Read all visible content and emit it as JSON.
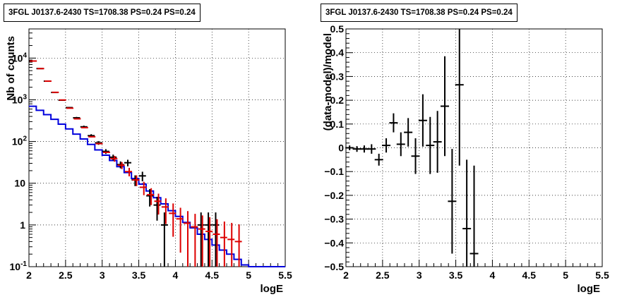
{
  "chart_data": [
    {
      "type": "line",
      "title": "3FGL J0137.6-2430 TS=1708.38 PS=0.24 PS=0.24",
      "xlabel": "logE",
      "ylabel": "Nb of counts",
      "xlim": [
        2,
        5.5
      ],
      "ylim": [
        0.1,
        50000
      ],
      "yscale": "log",
      "grid": true,
      "x_ticks": [
        "2",
        "2.5",
        "3",
        "3.5",
        "4",
        "4.5",
        "5",
        "5.5"
      ],
      "y_ticks": [
        "10^-1",
        "1",
        "10",
        "10^2",
        "10^3",
        "10^4"
      ],
      "colors": {
        "data": "#000000",
        "model_total": "#dd0000",
        "model_source": "#0000dd"
      },
      "series": [
        {
          "role": "data",
          "x": [
            2.05,
            2.15,
            2.25,
            2.35,
            2.45,
            2.55,
            2.65,
            2.75,
            2.85,
            2.95,
            3.05,
            3.15,
            3.25,
            3.35,
            3.45,
            3.55,
            3.65,
            3.75,
            3.85,
            3.95,
            4.05,
            4.15,
            4.25,
            4.35,
            4.45,
            4.55,
            4.65,
            4.75,
            4.85
          ],
          "y": [
            8500,
            5600,
            2800,
            1500,
            980,
            650,
            370,
            225,
            138,
            93,
            58,
            42,
            28,
            31,
            12,
            15,
            5,
            3,
            1,
            0,
            0,
            0,
            0,
            1,
            1,
            1,
            0,
            0,
            0
          ]
        },
        {
          "role": "model_total",
          "x": [
            2.05,
            2.15,
            2.25,
            2.35,
            2.45,
            2.55,
            2.65,
            2.75,
            2.85,
            2.95,
            3.05,
            3.15,
            3.25,
            3.35,
            3.45,
            3.55,
            3.65,
            3.75,
            3.85,
            3.95,
            4.05,
            4.15,
            4.25,
            4.35,
            4.45,
            4.55,
            4.65,
            4.75,
            4.85
          ],
          "y": [
            8500,
            5600,
            2800,
            1510,
            990,
            630,
            350,
            215,
            130,
            89,
            55,
            39,
            27,
            19,
            12,
            8,
            5.3,
            3.7,
            2.7,
            1.9,
            1.4,
            1.1,
            0.9,
            0.8,
            0.7,
            0.6,
            0.5,
            0.45,
            0.4
          ]
        },
        {
          "role": "model_source",
          "x": [
            2.0,
            2.1,
            2.2,
            2.3,
            2.4,
            2.5,
            2.6,
            2.7,
            2.8,
            2.9,
            3.0,
            3.1,
            3.2,
            3.3,
            3.4,
            3.5,
            3.6,
            3.7,
            3.8,
            3.9,
            4.0,
            4.1,
            4.2,
            4.3,
            4.4,
            4.5,
            4.6,
            4.7,
            4.8,
            4.9,
            5.0,
            5.1,
            5.2,
            5.3,
            5.4
          ],
          "y": [
            700,
            560,
            440,
            340,
            260,
            200,
            150,
            115,
            85,
            63,
            47,
            35,
            25,
            18,
            13,
            9.5,
            6.5,
            4.5,
            3.2,
            2.2,
            1.6,
            1.15,
            0.85,
            0.6,
            0.45,
            0.33,
            0.25,
            0.2,
            0.15,
            0.11,
            0.1,
            0.1,
            0.1,
            0.1,
            0.1
          ]
        }
      ]
    },
    {
      "type": "scatter",
      "title": "3FGL J0137.6-2430 TS=1708.38 PS=0.24 PS=0.24",
      "xlabel": "logE",
      "ylabel": "(data-model)/model",
      "xlim": [
        2,
        5.5
      ],
      "ylim": [
        -0.5,
        0.5
      ],
      "grid": true,
      "x_ticks": [
        "2",
        "2.5",
        "3",
        "3.5",
        "4",
        "4.5",
        "5",
        "5.5"
      ],
      "y_ticks": [
        "−0.5",
        "−0.4",
        "−0.3",
        "−0.2",
        "−0.1",
        "0",
        "0.1",
        "0.2",
        "0.3",
        "0.4",
        "0.5"
      ],
      "x": [
        2.05,
        2.15,
        2.25,
        2.35,
        2.45,
        2.55,
        2.65,
        2.75,
        2.85,
        2.95,
        3.05,
        3.15,
        3.25,
        3.35,
        3.45,
        3.55,
        3.65,
        3.75
      ],
      "y": [
        0.0,
        -0.005,
        -0.005,
        -0.005,
        -0.05,
        0.01,
        0.105,
        0.015,
        0.065,
        -0.035,
        0.115,
        0.01,
        0.025,
        0.175,
        -0.225,
        0.265,
        -0.34,
        -0.445
      ],
      "yerr": [
        0.01,
        0.012,
        0.015,
        0.02,
        0.025,
        0.03,
        0.04,
        0.05,
        0.06,
        0.075,
        0.11,
        0.12,
        0.13,
        0.21,
        0.22,
        0.34,
        0.29,
        0.37
      ]
    }
  ]
}
